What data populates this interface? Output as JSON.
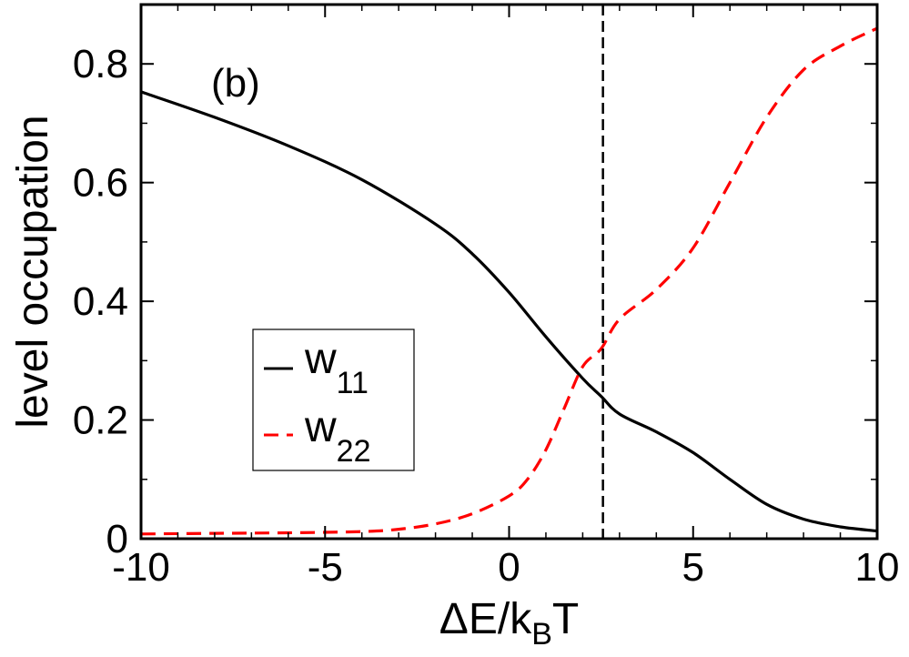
{
  "chart_data": {
    "type": "line",
    "panel_label": "(b)",
    "xlabel": "ΔE/k",
    "xlabel_sub": "B",
    "xlabel_tail": "T",
    "ylabel": "level occupation",
    "xlim": [
      -10,
      10
    ],
    "ylim": [
      0,
      0.9
    ],
    "x_ticks": [
      -10,
      -5,
      0,
      5,
      10
    ],
    "x_tick_labels": [
      "-10",
      "-5",
      "0",
      "5",
      "10"
    ],
    "y_ticks": [
      0,
      0.2,
      0.4,
      0.6,
      0.8
    ],
    "y_tick_labels": [
      "0",
      "0.2",
      "0.4",
      "0.6",
      "0.8"
    ],
    "vline_x": 2.55,
    "legend": {
      "placement": "lower-left"
    },
    "series": [
      {
        "name": "w",
        "name_sub": "11",
        "color": "#000000",
        "dash": "solid",
        "x": [
          -10,
          -8,
          -6,
          -4,
          -2,
          -1,
          0,
          1,
          2,
          2.5,
          3,
          4,
          5,
          6,
          7,
          8,
          9,
          10
        ],
        "y": [
          0.753,
          0.71,
          0.662,
          0.605,
          0.53,
          0.48,
          0.415,
          0.34,
          0.27,
          0.24,
          0.21,
          0.18,
          0.145,
          0.1,
          0.058,
          0.033,
          0.02,
          0.013
        ]
      },
      {
        "name": "w",
        "name_sub": "22",
        "color": "#ff0000",
        "dash": "dashed",
        "x": [
          -10,
          -8,
          -6,
          -4,
          -3,
          -2,
          -1,
          0,
          0.5,
          1,
          1.5,
          2,
          2.5,
          3,
          4,
          5,
          6,
          7,
          8,
          9,
          10
        ],
        "y": [
          0.008,
          0.009,
          0.01,
          0.012,
          0.016,
          0.025,
          0.042,
          0.072,
          0.1,
          0.15,
          0.22,
          0.29,
          0.32,
          0.37,
          0.42,
          0.49,
          0.6,
          0.71,
          0.79,
          0.83,
          0.86
        ]
      }
    ]
  }
}
